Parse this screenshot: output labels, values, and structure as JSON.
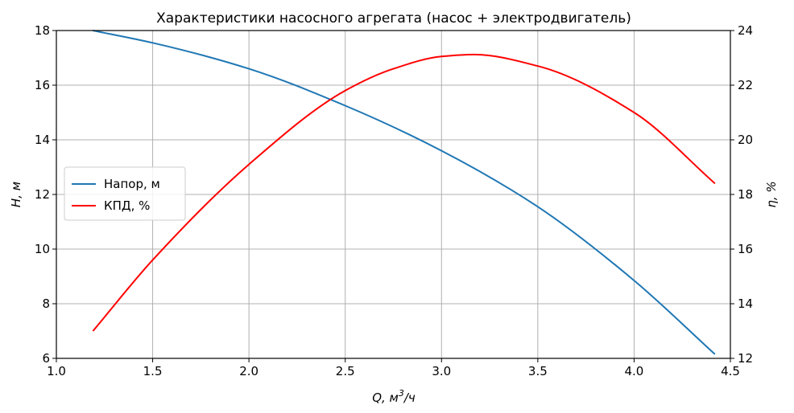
{
  "chart_data": {
    "type": "line",
    "title": "Характеристики насосного агрегата (насос + электродвигатель)",
    "xlabel": "Q, м",
    "xlabel_sup": "3",
    "xlabel_suffix": "/ч",
    "ylabel_left": "H, м",
    "ylabel_right": "η, %",
    "xlim": [
      1.0,
      4.5
    ],
    "ylim_left": [
      6,
      18
    ],
    "ylim_right": [
      12,
      24
    ],
    "x_ticks": [
      1.0,
      1.5,
      2.0,
      2.5,
      3.0,
      3.5,
      4.0,
      4.5
    ],
    "x_tick_labels": [
      "1.0",
      "1.5",
      "2.0",
      "2.5",
      "3.0",
      "3.5",
      "4.0",
      "4.5"
    ],
    "y_left_ticks": [
      6,
      8,
      10,
      12,
      14,
      16,
      18
    ],
    "y_left_tick_labels": [
      "6",
      "8",
      "10",
      "12",
      "14",
      "16",
      "18"
    ],
    "y_right_ticks": [
      12,
      14,
      16,
      18,
      20,
      22,
      24
    ],
    "y_right_tick_labels": [
      "12",
      "14",
      "16",
      "18",
      "20",
      "22",
      "24"
    ],
    "grid": true,
    "legend_position": "center-left",
    "series": [
      {
        "name": "Напор, м",
        "axis": "left",
        "color": "#1f77b4",
        "x": [
          1.19,
          1.5,
          2.0,
          2.5,
          3.0,
          3.5,
          4.0,
          4.42
        ],
        "y": [
          18.0,
          17.55,
          16.6,
          15.25,
          13.6,
          11.55,
          8.85,
          6.15
        ]
      },
      {
        "name": "КПД, %",
        "axis": "right",
        "color": "#ff0000",
        "x": [
          1.19,
          1.5,
          2.0,
          2.5,
          2.75,
          3.0,
          3.17,
          3.5,
          4.0,
          4.42
        ],
        "y": [
          13.0,
          15.6,
          19.1,
          21.8,
          22.6,
          23.05,
          23.12,
          22.7,
          21.0,
          18.4
        ]
      }
    ]
  }
}
